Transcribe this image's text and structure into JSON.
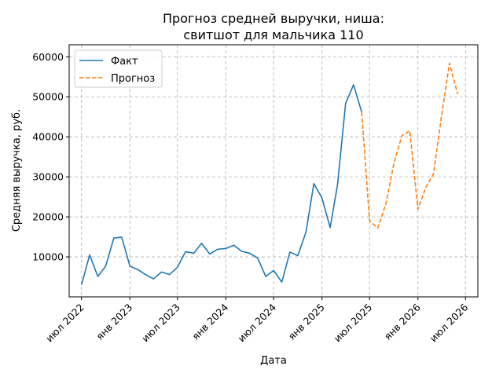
{
  "chart_data": {
    "type": "line",
    "title_line1": "Прогноз средней выручки, ниша:",
    "title_line2": "свитшот для мальчика 110",
    "xlabel": "Дата",
    "ylabel": "Средняя выручка, руб.",
    "ylim": [
      0,
      63000
    ],
    "y_ticks": [
      10000,
      20000,
      30000,
      40000,
      50000,
      60000
    ],
    "x_range": [
      "2022-05-15",
      "2026-08-17"
    ],
    "x_ticks": [
      {
        "date": "2022-07-01",
        "label": "июл 2022"
      },
      {
        "date": "2023-01-01",
        "label": "янв 2023"
      },
      {
        "date": "2023-07-01",
        "label": "июл 2023"
      },
      {
        "date": "2024-01-01",
        "label": "янв 2024"
      },
      {
        "date": "2024-07-01",
        "label": "июл 2024"
      },
      {
        "date": "2025-01-01",
        "label": "янв 2025"
      },
      {
        "date": "2025-07-01",
        "label": "июл 2025"
      },
      {
        "date": "2026-01-01",
        "label": "янв 2026"
      },
      {
        "date": "2026-07-01",
        "label": "июл 2026"
      }
    ],
    "grid": true,
    "legend_position": "top-left",
    "series": [
      {
        "name": "Факт",
        "color": "#1f77b4",
        "style": "solid",
        "points": [
          [
            "2022-07-01",
            3000
          ],
          [
            "2022-08-01",
            10500
          ],
          [
            "2022-09-01",
            5100
          ],
          [
            "2022-10-01",
            7700
          ],
          [
            "2022-11-01",
            14700
          ],
          [
            "2022-12-01",
            14900
          ],
          [
            "2023-01-01",
            7700
          ],
          [
            "2023-02-01",
            6800
          ],
          [
            "2023-03-01",
            5600
          ],
          [
            "2023-04-01",
            4500
          ],
          [
            "2023-05-01",
            6200
          ],
          [
            "2023-06-01",
            5600
          ],
          [
            "2023-07-01",
            7400
          ],
          [
            "2023-08-01",
            11300
          ],
          [
            "2023-09-01",
            10900
          ],
          [
            "2023-10-01",
            13400
          ],
          [
            "2023-11-01",
            10700
          ],
          [
            "2023-12-01",
            11900
          ],
          [
            "2024-01-01",
            12100
          ],
          [
            "2024-02-01",
            12900
          ],
          [
            "2024-03-01",
            11400
          ],
          [
            "2024-04-01",
            10900
          ],
          [
            "2024-05-01",
            9700
          ],
          [
            "2024-06-01",
            5100
          ],
          [
            "2024-07-01",
            6600
          ],
          [
            "2024-08-01",
            3700
          ],
          [
            "2024-09-01",
            11200
          ],
          [
            "2024-10-01",
            10300
          ],
          [
            "2024-11-01",
            16200
          ],
          [
            "2024-12-01",
            28300
          ],
          [
            "2025-01-01",
            24700
          ],
          [
            "2025-02-01",
            17300
          ],
          [
            "2025-03-01",
            28000
          ],
          [
            "2025-04-01",
            48400
          ],
          [
            "2025-05-01",
            53000
          ],
          [
            "2025-06-01",
            46200
          ]
        ]
      },
      {
        "name": "Прогноз",
        "color": "#ff7f0e",
        "style": "dashed",
        "points": [
          [
            "2025-06-01",
            46200
          ],
          [
            "2025-07-01",
            19000
          ],
          [
            "2025-08-01",
            17200
          ],
          [
            "2025-09-01",
            23200
          ],
          [
            "2025-10-01",
            33200
          ],
          [
            "2025-11-01",
            40300
          ],
          [
            "2025-12-01",
            41500
          ],
          [
            "2026-01-01",
            21900
          ],
          [
            "2026-02-01",
            27500
          ],
          [
            "2026-03-01",
            30700
          ],
          [
            "2026-04-01",
            45300
          ],
          [
            "2026-05-01",
            58400
          ],
          [
            "2026-06-01",
            50700
          ]
        ]
      }
    ]
  }
}
